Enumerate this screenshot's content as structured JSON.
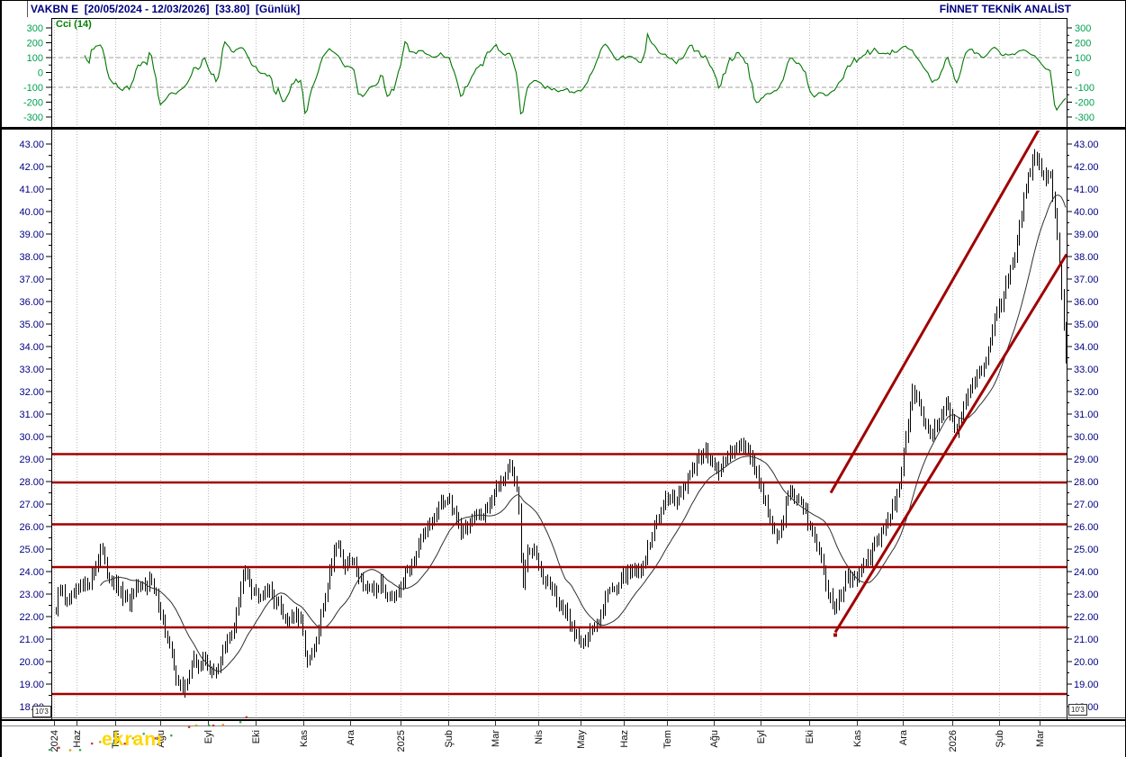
{
  "header": {
    "title_left": "VAKBN E  [20/05/2024 - 12/03/2026]  [33.80]  [Günlük]",
    "title_right": "FİNNET TEKNİK ANALİST"
  },
  "watermark": {
    "text": "ekranı"
  },
  "scale_label": "10'3",
  "colors": {
    "header_text": "#000080",
    "price_axis_text": "#000080",
    "cci_axis_text": "#00A050",
    "cci_line": "#007700",
    "cci_title": "#008000",
    "bar": "#000000",
    "ma_line": "#303030",
    "level_red": "#A00000",
    "grid_dotted": "#BBBBBB",
    "ref_dashed": "#A0A0A0",
    "watermark_dots": [
      "#22AA44",
      "#CC2222",
      "#CC9900"
    ]
  },
  "chart_data": [
    {
      "type": "line",
      "panel": "indicator",
      "title": "Cci (14)",
      "ylabel": "",
      "ylim": [
        -300,
        300
      ],
      "yticks": [
        300,
        200,
        100,
        0,
        -100,
        -200,
        -300
      ],
      "reference_lines": [
        100,
        -100
      ],
      "series_note": "CCI(14) oscillator of the daily price series below; swings between roughly +250 and -290 across the whole range, ending near -90 after a deep dip"
    },
    {
      "type": "ohlc-bar",
      "panel": "price",
      "symbol": "VAKBN E",
      "period": "Günlük",
      "date_range": "20/05/2024 - 12/03/2026",
      "last_close": 33.8,
      "ylim": [
        18,
        43
      ],
      "ytick_step": 1,
      "bars_approx": 455,
      "ma_period": 21,
      "support_resistance_levels": [
        29.22,
        27.96,
        26.1,
        24.2,
        21.52,
        18.56
      ],
      "trend_channel": [
        {
          "x1": 923,
          "price1": 27.5,
          "x2": 1185,
          "price2": 45.8
        },
        {
          "x1": 928,
          "price1": 21.3,
          "x2": 1185,
          "price2": 38.1
        }
      ],
      "x_months": [
        [
          "2024",
          60
        ],
        [
          "Haz",
          85
        ],
        [
          "Tem",
          128
        ],
        [
          "Ağu",
          178
        ],
        [
          "Eyl",
          231
        ],
        [
          "Eki",
          284
        ],
        [
          "Kas",
          337
        ],
        [
          "Ara",
          389
        ],
        [
          "2025",
          445
        ],
        [
          "Şub",
          498
        ],
        [
          "Mar",
          550
        ],
        [
          "Nis",
          598
        ],
        [
          "May",
          645
        ],
        [
          "Haz",
          693
        ],
        [
          "Tem",
          741
        ],
        [
          "Ağu",
          793
        ],
        [
          "Eyl",
          845
        ],
        [
          "Eki",
          899
        ],
        [
          "Kas",
          952
        ],
        [
          "Ara",
          1003
        ],
        [
          "2026",
          1058
        ],
        [
          "Şub",
          1110
        ],
        [
          "Mar",
          1155
        ]
      ],
      "close_anchors": [
        [
          62,
          22.3
        ],
        [
          67,
          23.3
        ],
        [
          72,
          22.8
        ],
        [
          78,
          22.6
        ],
        [
          84,
          23.1
        ],
        [
          92,
          23.3
        ],
        [
          100,
          23.6
        ],
        [
          106,
          24.2
        ],
        [
          112,
          25.1
        ],
        [
          118,
          24.0
        ],
        [
          126,
          23.5
        ],
        [
          134,
          23.0
        ],
        [
          142,
          22.6
        ],
        [
          150,
          23.1
        ],
        [
          158,
          23.3
        ],
        [
          166,
          23.7
        ],
        [
          172,
          23.0
        ],
        [
          178,
          22.3
        ],
        [
          184,
          21.2
        ],
        [
          190,
          20.3
        ],
        [
          196,
          19.3
        ],
        [
          203,
          18.6
        ],
        [
          210,
          19.6
        ],
        [
          216,
          20.1
        ],
        [
          222,
          19.7
        ],
        [
          228,
          20.2
        ],
        [
          235,
          19.4
        ],
        [
          242,
          19.8
        ],
        [
          250,
          20.6
        ],
        [
          258,
          21.3
        ],
        [
          264,
          22.5
        ],
        [
          270,
          23.8
        ],
        [
          274,
          24.2
        ],
        [
          280,
          23.2
        ],
        [
          287,
          23.0
        ],
        [
          294,
          23.3
        ],
        [
          302,
          22.9
        ],
        [
          310,
          22.5
        ],
        [
          318,
          21.8
        ],
        [
          326,
          22.1
        ],
        [
          334,
          21.7
        ],
        [
          342,
          19.8
        ],
        [
          350,
          20.6
        ],
        [
          358,
          22.4
        ],
        [
          366,
          24.0
        ],
        [
          374,
          25.5
        ],
        [
          382,
          24.2
        ],
        [
          390,
          24.5
        ],
        [
          398,
          23.9
        ],
        [
          406,
          23.3
        ],
        [
          414,
          23.0
        ],
        [
          422,
          23.4
        ],
        [
          430,
          23.0
        ],
        [
          438,
          23.1
        ],
        [
          446,
          23.5
        ],
        [
          456,
          24.4
        ],
        [
          466,
          25.2
        ],
        [
          476,
          26.0
        ],
        [
          486,
          26.7
        ],
        [
          495,
          27.3
        ],
        [
          504,
          26.7
        ],
        [
          512,
          25.8
        ],
        [
          520,
          26.1
        ],
        [
          528,
          26.3
        ],
        [
          536,
          26.6
        ],
        [
          544,
          27.1
        ],
        [
          552,
          27.7
        ],
        [
          560,
          28.3
        ],
        [
          567,
          28.8
        ],
        [
          574,
          27.6
        ],
        [
          577,
          26.2
        ],
        [
          580,
          22.8
        ],
        [
          584,
          24.6
        ],
        [
          590,
          25.0
        ],
        [
          598,
          24.4
        ],
        [
          606,
          23.7
        ],
        [
          614,
          23.1
        ],
        [
          622,
          22.5
        ],
        [
          630,
          21.9
        ],
        [
          638,
          21.3
        ],
        [
          646,
          20.9
        ],
        [
          654,
          21.2
        ],
        [
          662,
          21.6
        ],
        [
          670,
          22.5
        ],
        [
          678,
          23.4
        ],
        [
          686,
          23.3
        ],
        [
          694,
          23.8
        ],
        [
          702,
          24.2
        ],
        [
          710,
          23.9
        ],
        [
          718,
          24.8
        ],
        [
          726,
          25.8
        ],
        [
          734,
          26.8
        ],
        [
          742,
          27.4
        ],
        [
          750,
          27.2
        ],
        [
          758,
          27.6
        ],
        [
          766,
          28.2
        ],
        [
          774,
          28.9
        ],
        [
          781,
          29.4
        ],
        [
          788,
          29.1
        ],
        [
          795,
          28.4
        ],
        [
          801,
          28.6
        ],
        [
          808,
          29.0
        ],
        [
          815,
          29.5
        ],
        [
          822,
          29.7
        ],
        [
          829,
          29.4
        ],
        [
          836,
          28.9
        ],
        [
          843,
          28.1
        ],
        [
          850,
          27.1
        ],
        [
          857,
          26.0
        ],
        [
          863,
          25.3
        ],
        [
          870,
          26.4
        ],
        [
          877,
          27.9
        ],
        [
          884,
          27.1
        ],
        [
          891,
          26.9
        ],
        [
          898,
          26.3
        ],
        [
          905,
          25.6
        ],
        [
          912,
          24.6
        ],
        [
          919,
          23.2
        ],
        [
          926,
          22.3
        ],
        [
          933,
          22.8
        ],
        [
          940,
          24.0
        ],
        [
          947,
          23.5
        ],
        [
          954,
          23.8
        ],
        [
          961,
          24.3
        ],
        [
          969,
          24.9
        ],
        [
          977,
          25.5
        ],
        [
          985,
          26.2
        ],
        [
          993,
          27.0
        ],
        [
          1000,
          28.1
        ],
        [
          1007,
          30.2
        ],
        [
          1014,
          32.1
        ],
        [
          1021,
          31.4
        ],
        [
          1028,
          30.5
        ],
        [
          1035,
          30.0
        ],
        [
          1042,
          30.8
        ],
        [
          1049,
          31.5
        ],
        [
          1056,
          30.9
        ],
        [
          1063,
          30.3
        ],
        [
          1070,
          31.4
        ],
        [
          1077,
          32.1
        ],
        [
          1084,
          32.6
        ],
        [
          1091,
          33.0
        ],
        [
          1098,
          34.0
        ],
        [
          1105,
          35.1
        ],
        [
          1112,
          36.0
        ],
        [
          1119,
          36.8
        ],
        [
          1126,
          37.8
        ],
        [
          1132,
          39.3
        ],
        [
          1138,
          40.9
        ],
        [
          1144,
          41.7
        ],
        [
          1150,
          42.4
        ],
        [
          1156,
          42.0
        ],
        [
          1161,
          41.2
        ],
        [
          1166,
          41.9
        ],
        [
          1171,
          40.3
        ],
        [
          1175,
          38.6
        ],
        [
          1178,
          36.8
        ],
        [
          1181,
          35.0
        ],
        [
          1184,
          33.8
        ]
      ]
    }
  ]
}
